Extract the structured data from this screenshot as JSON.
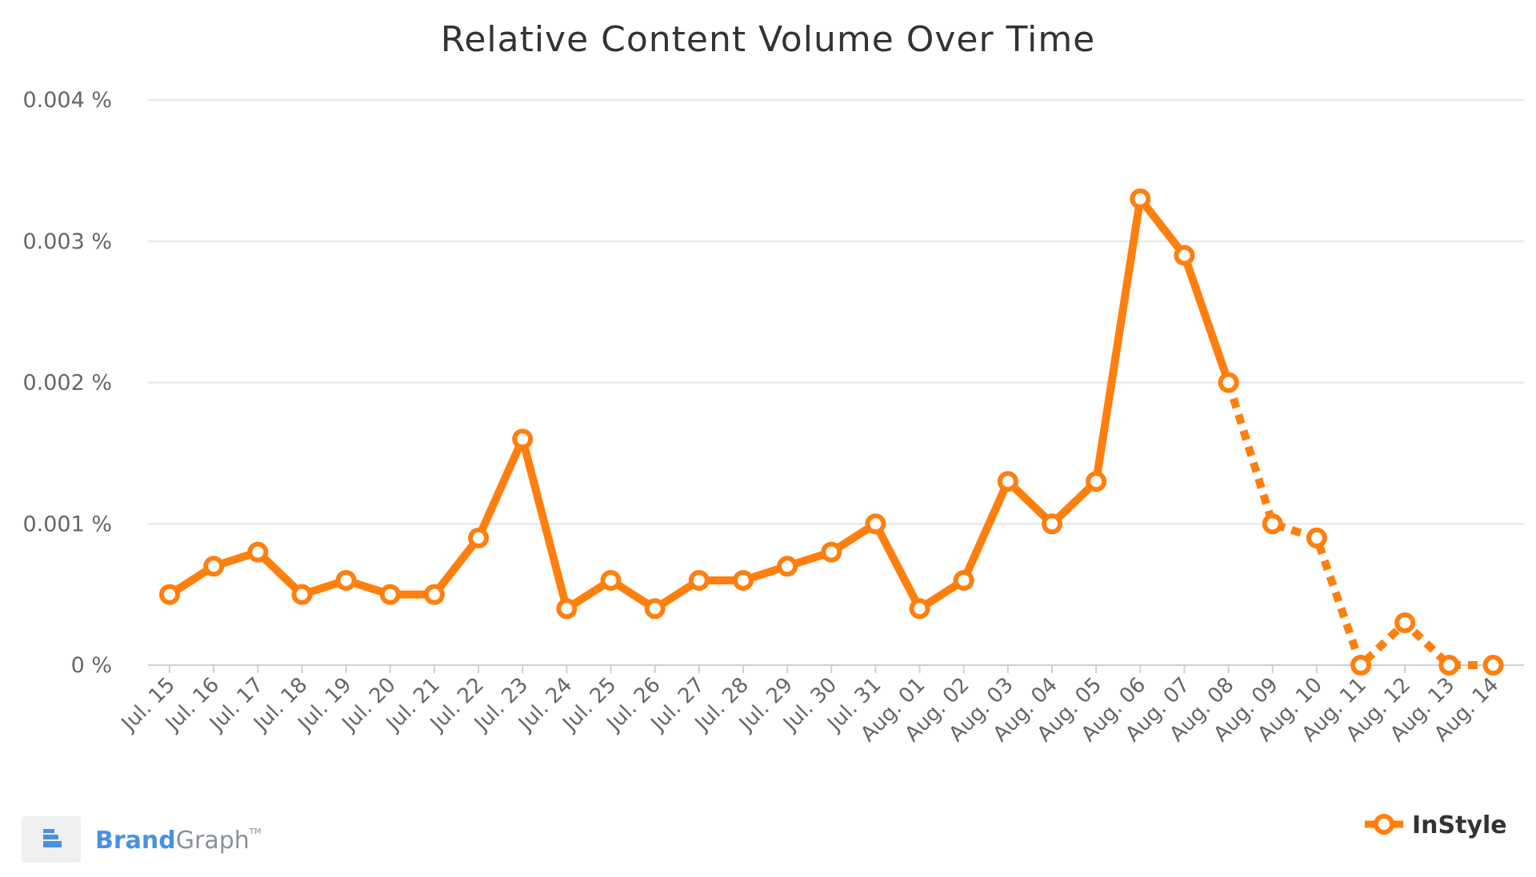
{
  "chart_data": {
    "type": "line",
    "title": "Relative Content Volume Over Time",
    "xlabel": "",
    "ylabel": "",
    "ylim": [
      0,
      0.004
    ],
    "y_ticks": [
      "0 %",
      "0.001 %",
      "0.002 %",
      "0.003 %",
      "0.004 %"
    ],
    "y_tick_values": [
      0,
      0.001,
      0.002,
      0.003,
      0.004
    ],
    "grid": true,
    "legend_position": "bottom-right",
    "categories": [
      "Jul. 15",
      "Jul. 16",
      "Jul. 17",
      "Jul. 18",
      "Jul. 19",
      "Jul. 20",
      "Jul. 21",
      "Jul. 22",
      "Jul. 23",
      "Jul. 24",
      "Jul. 25",
      "Jul. 26",
      "Jul. 27",
      "Jul. 28",
      "Jul. 29",
      "Jul. 30",
      "Jul. 31",
      "Aug. 01",
      "Aug. 02",
      "Aug. 03",
      "Aug. 04",
      "Aug. 05",
      "Aug. 06",
      "Aug. 07",
      "Aug. 08",
      "Aug. 09",
      "Aug. 10",
      "Aug. 11",
      "Aug. 12",
      "Aug. 13",
      "Aug. 14"
    ],
    "series": [
      {
        "name": "InStyle",
        "color": "#ff7f0e",
        "values": [
          0.0005,
          0.0007,
          0.0008,
          0.0005,
          0.0006,
          0.0005,
          0.0005,
          0.0009,
          0.0016,
          0.0004,
          0.0006,
          0.0004,
          0.0006,
          0.0006,
          0.0007,
          0.0008,
          0.001,
          0.0004,
          0.0006,
          0.0013,
          0.001,
          0.0013,
          0.0033,
          0.0029,
          0.002,
          0.001,
          0.0009,
          0.0,
          0.0003,
          0.0,
          0.0
        ],
        "dashed_from_category": "Aug. 08"
      }
    ]
  },
  "branding": {
    "logo_icon": "brandgraph-logo-icon",
    "brand_part": "Brand",
    "graph_part": "Graph",
    "trademark": "TM",
    "brand_color": "#4a90e2",
    "graph_color": "#8a9099"
  }
}
